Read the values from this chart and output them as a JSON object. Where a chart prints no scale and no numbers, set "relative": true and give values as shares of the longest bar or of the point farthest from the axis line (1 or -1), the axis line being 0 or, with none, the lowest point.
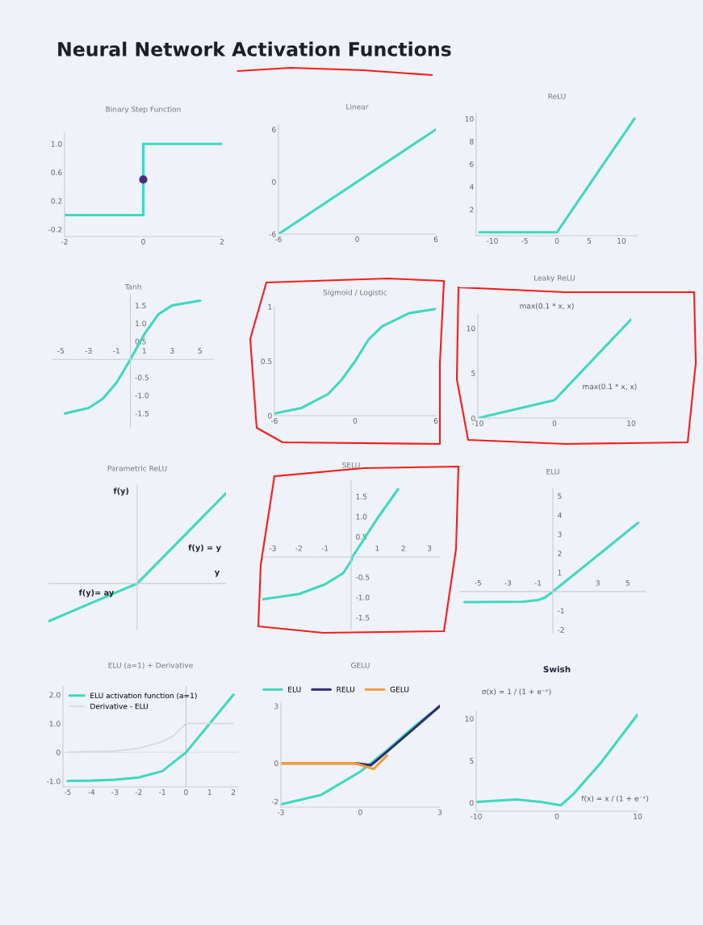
{
  "chart_data": [
    {
      "type": "other",
      "title": "Neural Network Activation Functions"
    },
    {
      "type": "step",
      "title": "Binary Step Function",
      "xlim": [
        -2,
        2
      ],
      "ylim": [
        -0.3,
        1.15
      ],
      "xticks": [
        -2,
        0,
        2
      ],
      "yticks": [
        -0.2,
        0.2,
        0.6,
        {
          "value": 1,
          "label": "1.0"
        }
      ],
      "grid": false,
      "series": [
        {
          "type": "step",
          "color": "#3fd9bf",
          "x": [
            -2,
            0,
            2
          ],
          "values": [
            0,
            1,
            1
          ]
        },
        {
          "type": "scatter",
          "color": "#4a2b7b",
          "x": [
            0
          ],
          "values": [
            0.5
          ]
        }
      ]
    },
    {
      "type": "line",
      "title": "Linear",
      "xlim": [
        -6,
        6
      ],
      "ylim": [
        -6,
        6.5
      ],
      "xticks": [
        -6,
        0,
        6
      ],
      "yticks": [
        -6,
        0,
        6
      ],
      "grid": false,
      "series": [
        {
          "color": "#3fd9bf",
          "x": [
            -6,
            6
          ],
          "values": [
            -6,
            6
          ]
        }
      ]
    },
    {
      "type": "line",
      "title": "ReLU",
      "xlim": [
        -12.5,
        12.5
      ],
      "ylim": [
        -0.3,
        10.5
      ],
      "xticks": [
        -10,
        -5,
        0,
        5,
        10
      ],
      "yticks": [
        2,
        4,
        6,
        8,
        10
      ],
      "grid": false,
      "series": [
        {
          "color": "#3fd9bf",
          "x": [
            -12,
            0,
            12
          ],
          "values": [
            0,
            0,
            10
          ]
        }
      ]
    },
    {
      "type": "line",
      "title": "Tanh",
      "xlim": [
        -5.6,
        6
      ],
      "ylim": [
        -1.9,
        1.8
      ],
      "xticks": [
        -5,
        -3,
        -1,
        1,
        3,
        5
      ],
      "yticks": [
        -1.5,
        {
          "value": -1,
          "label": "-1.0"
        },
        -0.5,
        0.5,
        {
          "value": 1,
          "label": "1.0"
        },
        1.5
      ],
      "grid": false,
      "series": [
        {
          "color": "#3fd9bf",
          "x": [
            -4.7,
            -3,
            -2,
            -1,
            0,
            1,
            2,
            3,
            5
          ],
          "values": [
            -1.5,
            -1.35,
            -1.1,
            -0.65,
            0,
            0.7,
            1.25,
            1.5,
            1.63
          ]
        }
      ]
    },
    {
      "type": "line",
      "title": "Sigmoid / Logistic",
      "xlim": [
        -6,
        6
      ],
      "ylim": [
        0,
        1
      ],
      "xticks": [
        -6,
        0,
        6
      ],
      "yticks": [
        0,
        0.5,
        1
      ],
      "grid": false,
      "series": [
        {
          "color": "#3fd9bf",
          "x": [
            -6,
            -4,
            -2,
            -1,
            0,
            1,
            2,
            4,
            6
          ],
          "values": [
            0.02,
            0.07,
            0.2,
            0.33,
            0.5,
            0.7,
            0.82,
            0.94,
            0.98
          ]
        }
      ]
    },
    {
      "type": "line",
      "title": "Leaky ReLU",
      "xlim": [
        -10,
        10
      ],
      "ylim": [
        0,
        11.5
      ],
      "xticks": [
        -10,
        0,
        10
      ],
      "yticks": [
        0,
        5,
        10
      ],
      "grid": false,
      "annotations": [
        "max(0.1 * x, x)",
        "max(0.1 * x, x)"
      ],
      "series": [
        {
          "color": "#3fd9bf",
          "x": [
            -10,
            0,
            10
          ],
          "values": [
            0,
            2,
            11
          ]
        }
      ]
    },
    {
      "type": "line",
      "title": "Parametric ReLU",
      "relative": true,
      "categories": [
        null,
        null,
        null
      ],
      "grid": false,
      "annotations": [
        "f(y)",
        "f(y) = y",
        "y",
        "f(y)= ay"
      ],
      "series": [
        {
          "color": "#3fd9bf",
          "values": [
            -0.42,
            0,
            1
          ]
        }
      ]
    },
    {
      "type": "line",
      "title": "SELU",
      "xlim": [
        -3.4,
        3.4
      ],
      "ylim": [
        -1.8,
        1.9
      ],
      "xticks": [
        -3,
        -2,
        -1,
        1,
        2,
        3
      ],
      "yticks": [
        -1.5,
        {
          "value": -1,
          "label": "-1.0"
        },
        -0.5,
        0.5,
        {
          "value": 1,
          "label": "1.0"
        },
        1.5
      ],
      "grid": false,
      "series": [
        {
          "color": "#3fd9bf",
          "x": [
            -3.4,
            -2,
            -1,
            -0.3,
            0,
            0.05,
            1,
            1.8
          ],
          "values": [
            -1.05,
            -0.92,
            -0.68,
            -0.4,
            -0.1,
            0,
            0.95,
            1.68
          ]
        }
      ]
    },
    {
      "type": "line",
      "title": "ELU",
      "xlim": [
        -6.2,
        6.2
      ],
      "ylim": [
        -2.2,
        5.4
      ],
      "xticks": [
        -5,
        -3,
        -1,
        3,
        5
      ],
      "yticks": [
        -2,
        -1,
        1,
        2,
        3,
        4,
        5
      ],
      "grid": false,
      "series": [
        {
          "color": "#3fd9bf",
          "x": [
            -5.9,
            -2,
            -1,
            -0.5,
            0,
            5.7
          ],
          "values": [
            -0.55,
            -0.53,
            -0.45,
            -0.3,
            0,
            3.6
          ]
        }
      ]
    },
    {
      "type": "line",
      "title": "ELU (a=1) + Derivative",
      "xlim": [
        -5.2,
        2.2
      ],
      "ylim": [
        -1.2,
        2.3
      ],
      "xticks": [
        -5,
        -4,
        -3,
        -2,
        -1,
        0,
        1,
        2
      ],
      "yticks": [
        {
          "value": -1,
          "label": "-1.0"
        },
        0,
        {
          "value": 1,
          "label": "1.0"
        },
        {
          "value": 2,
          "label": "2.0"
        }
      ],
      "grid": false,
      "legend": "top left",
      "ref_lines": [
        {
          "axis": "x",
          "value": 0,
          "color": "#c2c6cf"
        },
        {
          "axis": "y",
          "value": 0,
          "color": "#dcdfe5"
        }
      ],
      "series": [
        {
          "name": "ELU activation function (a=1)",
          "color": "#3fd9bf",
          "x": [
            -5,
            -4,
            -3,
            -2,
            -1,
            0,
            1,
            2
          ],
          "values": [
            -0.99,
            -0.98,
            -0.95,
            -0.87,
            -0.65,
            0,
            1,
            2
          ]
        },
        {
          "name": "Derivative - ELU",
          "color": "#d5d8dd",
          "x": [
            -5,
            -3,
            -2,
            -1,
            -0.5,
            0,
            2
          ],
          "values": [
            0.01,
            0.05,
            0.14,
            0.37,
            0.6,
            1,
            1
          ]
        }
      ]
    },
    {
      "type": "line",
      "title": "GELU",
      "xlim": [
        -3,
        3
      ],
      "ylim": [
        -2.3,
        3.2
      ],
      "xticks": [
        -3,
        0,
        3
      ],
      "yticks": [
        -2,
        0,
        3
      ],
      "grid": false,
      "legend": "top",
      "series": [
        {
          "name": "ELU",
          "color": "#3fd9bf",
          "x": [
            -3,
            -1.5,
            0,
            1,
            2,
            3
          ],
          "values": [
            -2.15,
            -1.67,
            -0.44,
            0.67,
            1.89,
            3
          ]
        },
        {
          "name": "RELU",
          "color": "#2e2f6e",
          "x": [
            -3,
            -0.2,
            0.4,
            1,
            3
          ],
          "values": [
            0,
            0,
            -0.1,
            0.6,
            3
          ]
        },
        {
          "name": "GELU",
          "color": "#f39c3a",
          "x": [
            -3,
            -0.2,
            0.5,
            1
          ],
          "values": [
            0,
            0,
            -0.3,
            0.4
          ]
        }
      ]
    },
    {
      "type": "line",
      "title": "Swish",
      "xlim": [
        -10,
        10
      ],
      "ylim": [
        -1,
        11
      ],
      "xticks": [
        -10,
        0,
        10
      ],
      "yticks": [
        0,
        5,
        10
      ],
      "grid": false,
      "annotations": [
        "σ(x) = 1 / (1 + e⁻ˣ)",
        "f(x) = x / (1 + e⁻ˣ)"
      ],
      "series": [
        {
          "color": "#3fd9bf",
          "x": [
            -10,
            -5,
            -2,
            0.5,
            2,
            5.4,
            10
          ],
          "values": [
            0.1,
            0.4,
            0.1,
            -0.3,
            1.0,
            4.7,
            10.5
          ]
        }
      ]
    }
  ]
}
